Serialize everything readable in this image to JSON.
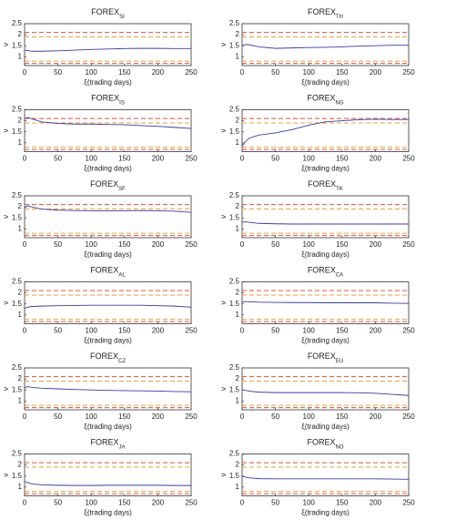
{
  "chart_data": [
    {
      "type": "line",
      "title": "FOREX",
      "title_sub": "SI",
      "xlabel": "ξ(trading days)",
      "ylabel": "ν",
      "xlim": [
        0,
        250
      ],
      "xticks": [
        0,
        50,
        100,
        150,
        200,
        250
      ],
      "ylim": [
        0.6,
        2.5
      ],
      "yticks": [
        1,
        1.5,
        2,
        2.5
      ],
      "hlines": [
        {
          "value": 2.1,
          "color": "#e0503a"
        },
        {
          "value": 1.9,
          "color": "#e8a23a"
        },
        {
          "value": 0.8,
          "color": "#e8a23a"
        },
        {
          "value": 0.7,
          "color": "#e0503a"
        }
      ],
      "x": [
        0,
        5,
        10,
        25,
        50,
        75,
        100,
        125,
        150,
        175,
        200,
        225,
        250
      ],
      "series": [
        {
          "color": "#3a3aa8",
          "values": [
            1.3,
            1.28,
            1.25,
            1.25,
            1.27,
            1.3,
            1.33,
            1.35,
            1.37,
            1.38,
            1.38,
            1.37,
            1.37
          ]
        }
      ]
    },
    {
      "type": "line",
      "title": "FOREX",
      "title_sub": "TH",
      "xlabel": "ξ(trading days)",
      "ylabel": "ν",
      "xlim": [
        0,
        250
      ],
      "xticks": [
        0,
        50,
        100,
        150,
        200,
        250
      ],
      "ylim": [
        0.6,
        2.5
      ],
      "yticks": [
        1,
        1.5,
        2,
        2.5
      ],
      "hlines": [
        {
          "value": 2.1,
          "color": "#e0503a"
        },
        {
          "value": 1.9,
          "color": "#e8a23a"
        },
        {
          "value": 0.8,
          "color": "#e8a23a"
        },
        {
          "value": 0.7,
          "color": "#e0503a"
        }
      ],
      "x": [
        0,
        5,
        10,
        25,
        50,
        75,
        100,
        125,
        150,
        175,
        200,
        225,
        250
      ],
      "series": [
        {
          "color": "#3a3aa8",
          "values": [
            1.5,
            1.55,
            1.55,
            1.45,
            1.38,
            1.4,
            1.42,
            1.43,
            1.45,
            1.48,
            1.5,
            1.52,
            1.52
          ]
        }
      ]
    },
    {
      "type": "line",
      "title": "FOREX",
      "title_sub": "IS",
      "xlabel": "ξ(trading days)",
      "ylabel": "ν",
      "xlim": [
        0,
        250
      ],
      "xticks": [
        0,
        50,
        100,
        150,
        200,
        250
      ],
      "ylim": [
        0.6,
        2.5
      ],
      "yticks": [
        1,
        1.5,
        2,
        2.5
      ],
      "hlines": [
        {
          "value": 2.1,
          "color": "#e0503a"
        },
        {
          "value": 1.9,
          "color": "#e8a23a"
        },
        {
          "value": 0.8,
          "color": "#e8a23a"
        },
        {
          "value": 0.7,
          "color": "#e0503a"
        }
      ],
      "x": [
        0,
        5,
        10,
        25,
        50,
        75,
        100,
        125,
        150,
        175,
        200,
        225,
        250
      ],
      "series": [
        {
          "color": "#3a3aa8",
          "values": [
            2.1,
            2.15,
            2.1,
            1.95,
            1.88,
            1.85,
            1.85,
            1.83,
            1.82,
            1.78,
            1.75,
            1.7,
            1.65
          ]
        }
      ]
    },
    {
      "type": "line",
      "title": "FOREX",
      "title_sub": "NG",
      "xlabel": "ξ(trading days)",
      "ylabel": "ν",
      "xlim": [
        0,
        250
      ],
      "xticks": [
        0,
        50,
        100,
        150,
        200,
        250
      ],
      "ylim": [
        0.6,
        2.5
      ],
      "yticks": [
        1,
        1.5,
        2,
        2.5
      ],
      "hlines": [
        {
          "value": 2.1,
          "color": "#e0503a"
        },
        {
          "value": 1.9,
          "color": "#e8a23a"
        },
        {
          "value": 0.8,
          "color": "#e8a23a"
        },
        {
          "value": 0.7,
          "color": "#e0503a"
        }
      ],
      "x": [
        0,
        5,
        10,
        25,
        50,
        75,
        100,
        125,
        150,
        175,
        200,
        225,
        250
      ],
      "series": [
        {
          "color": "#3a3aa8",
          "values": [
            0.85,
            1.05,
            1.2,
            1.35,
            1.45,
            1.6,
            1.8,
            1.95,
            2.0,
            2.05,
            2.07,
            2.06,
            2.06
          ]
        }
      ]
    },
    {
      "type": "line",
      "title": "FOREX",
      "title_sub": "SF",
      "xlabel": "ξ(trading days)",
      "ylabel": "ν",
      "xlim": [
        0,
        250
      ],
      "xticks": [
        0,
        50,
        100,
        150,
        200,
        250
      ],
      "ylim": [
        0.6,
        2.5
      ],
      "yticks": [
        1,
        1.5,
        2,
        2.5
      ],
      "hlines": [
        {
          "value": 2.1,
          "color": "#e0503a"
        },
        {
          "value": 1.9,
          "color": "#e8a23a"
        },
        {
          "value": 0.8,
          "color": "#e8a23a"
        },
        {
          "value": 0.7,
          "color": "#e0503a"
        }
      ],
      "x": [
        0,
        5,
        10,
        25,
        50,
        75,
        100,
        125,
        150,
        175,
        200,
        225,
        250
      ],
      "series": [
        {
          "color": "#3a3aa8",
          "values": [
            1.95,
            2.05,
            2.0,
            1.9,
            1.85,
            1.83,
            1.82,
            1.82,
            1.82,
            1.83,
            1.82,
            1.8,
            1.75
          ]
        }
      ]
    },
    {
      "type": "line",
      "title": "FOREX",
      "title_sub": "TK",
      "xlabel": "ξ(trading days)",
      "ylabel": "ν",
      "xlim": [
        0,
        250
      ],
      "xticks": [
        0,
        50,
        100,
        150,
        200,
        250
      ],
      "ylim": [
        0.6,
        2.5
      ],
      "yticks": [
        1,
        1.5,
        2,
        2.5
      ],
      "hlines": [
        {
          "value": 2.1,
          "color": "#e0503a"
        },
        {
          "value": 1.9,
          "color": "#e8a23a"
        },
        {
          "value": 0.8,
          "color": "#e8a23a"
        },
        {
          "value": 0.7,
          "color": "#e0503a"
        }
      ],
      "x": [
        0,
        5,
        10,
        25,
        50,
        75,
        100,
        125,
        150,
        175,
        200,
        225,
        250
      ],
      "series": [
        {
          "color": "#3a3aa8",
          "values": [
            1.3,
            1.32,
            1.3,
            1.25,
            1.23,
            1.22,
            1.22,
            1.22,
            1.22,
            1.22,
            1.22,
            1.22,
            1.22
          ]
        }
      ]
    },
    {
      "type": "line",
      "title": "FOREX",
      "title_sub": "AL",
      "xlabel": "ξ(trading days)",
      "ylabel": "ν",
      "xlim": [
        0,
        250
      ],
      "xticks": [
        0,
        50,
        100,
        150,
        200,
        250
      ],
      "ylim": [
        0.6,
        2.5
      ],
      "yticks": [
        1,
        1.5,
        2,
        2.5
      ],
      "hlines": [
        {
          "value": 2.1,
          "color": "#e0503a"
        },
        {
          "value": 1.9,
          "color": "#e8a23a"
        },
        {
          "value": 0.8,
          "color": "#e8a23a"
        },
        {
          "value": 0.7,
          "color": "#e0503a"
        }
      ],
      "x": [
        0,
        5,
        10,
        25,
        50,
        75,
        100,
        125,
        150,
        175,
        200,
        225,
        250
      ],
      "series": [
        {
          "color": "#3a3aa8",
          "values": [
            1.3,
            1.35,
            1.38,
            1.4,
            1.42,
            1.43,
            1.44,
            1.44,
            1.44,
            1.44,
            1.42,
            1.4,
            1.35
          ]
        }
      ]
    },
    {
      "type": "line",
      "title": "FOREX",
      "title_sub": "CA",
      "xlabel": "ξ(trading days)",
      "ylabel": "ν",
      "xlim": [
        0,
        250
      ],
      "xticks": [
        0,
        50,
        100,
        150,
        200,
        250
      ],
      "ylim": [
        0.6,
        2.5
      ],
      "yticks": [
        1,
        1.5,
        2,
        2.5
      ],
      "hlines": [
        {
          "value": 2.1,
          "color": "#e0503a"
        },
        {
          "value": 1.9,
          "color": "#e8a23a"
        },
        {
          "value": 0.8,
          "color": "#e8a23a"
        },
        {
          "value": 0.7,
          "color": "#e0503a"
        }
      ],
      "x": [
        0,
        5,
        10,
        25,
        50,
        75,
        100,
        125,
        150,
        175,
        200,
        225,
        250
      ],
      "series": [
        {
          "color": "#3a3aa8",
          "values": [
            1.6,
            1.6,
            1.6,
            1.58,
            1.57,
            1.56,
            1.56,
            1.55,
            1.55,
            1.55,
            1.55,
            1.53,
            1.52
          ]
        }
      ]
    },
    {
      "type": "line",
      "title": "FOREX",
      "title_sub": "CZ",
      "xlabel": "ξ(trading days)",
      "ylabel": "ν",
      "xlim": [
        0,
        250
      ],
      "xticks": [
        0,
        50,
        100,
        150,
        200,
        250
      ],
      "ylim": [
        0.6,
        2.5
      ],
      "yticks": [
        1,
        1.5,
        2,
        2.5
      ],
      "hlines": [
        {
          "value": 2.1,
          "color": "#e0503a"
        },
        {
          "value": 1.9,
          "color": "#e8a23a"
        },
        {
          "value": 0.8,
          "color": "#e8a23a"
        },
        {
          "value": 0.7,
          "color": "#e0503a"
        }
      ],
      "x": [
        0,
        5,
        10,
        25,
        50,
        75,
        100,
        125,
        150,
        175,
        200,
        225,
        250
      ],
      "series": [
        {
          "color": "#3a3aa8",
          "values": [
            1.6,
            1.65,
            1.62,
            1.58,
            1.55,
            1.52,
            1.5,
            1.48,
            1.47,
            1.46,
            1.45,
            1.43,
            1.42
          ]
        }
      ]
    },
    {
      "type": "line",
      "title": "FOREX",
      "title_sub": "EU",
      "xlabel": "ξ(trading days)",
      "ylabel": "ν",
      "xlim": [
        0,
        250
      ],
      "xticks": [
        0,
        50,
        100,
        150,
        200,
        250
      ],
      "ylim": [
        0.6,
        2.5
      ],
      "yticks": [
        1,
        1.5,
        2,
        2.5
      ],
      "hlines": [
        {
          "value": 2.1,
          "color": "#e0503a"
        },
        {
          "value": 1.9,
          "color": "#e8a23a"
        },
        {
          "value": 0.8,
          "color": "#e8a23a"
        },
        {
          "value": 0.7,
          "color": "#e0503a"
        }
      ],
      "x": [
        0,
        5,
        10,
        25,
        50,
        75,
        100,
        125,
        150,
        175,
        200,
        225,
        250
      ],
      "series": [
        {
          "color": "#3a3aa8",
          "values": [
            1.5,
            1.48,
            1.45,
            1.4,
            1.38,
            1.38,
            1.38,
            1.38,
            1.38,
            1.37,
            1.35,
            1.3,
            1.25
          ]
        }
      ]
    },
    {
      "type": "line",
      "title": "FOREX",
      "title_sub": "JA",
      "xlabel": "ξ(trading days)",
      "ylabel": "ν",
      "xlim": [
        0,
        250
      ],
      "xticks": [
        0,
        50,
        100,
        150,
        200,
        250
      ],
      "ylim": [
        0.6,
        2.5
      ],
      "yticks": [
        1,
        1.5,
        2,
        2.5
      ],
      "hlines": [
        {
          "value": 2.1,
          "color": "#e0503a"
        },
        {
          "value": 1.9,
          "color": "#e8a23a"
        },
        {
          "value": 0.8,
          "color": "#e8a23a"
        },
        {
          "value": 0.7,
          "color": "#e0503a"
        }
      ],
      "x": [
        0,
        5,
        10,
        25,
        50,
        75,
        100,
        125,
        150,
        175,
        200,
        225,
        250
      ],
      "series": [
        {
          "color": "#3a3aa8",
          "values": [
            1.25,
            1.2,
            1.15,
            1.1,
            1.08,
            1.07,
            1.07,
            1.08,
            1.08,
            1.08,
            1.08,
            1.07,
            1.07
          ]
        }
      ]
    },
    {
      "type": "line",
      "title": "FOREX",
      "title_sub": "NO",
      "xlabel": "ξ(trading days)",
      "ylabel": "ν",
      "xlim": [
        0,
        250
      ],
      "xticks": [
        0,
        50,
        100,
        150,
        200,
        250
      ],
      "ylim": [
        0.6,
        2.5
      ],
      "yticks": [
        1,
        1.5,
        2,
        2.5
      ],
      "hlines": [
        {
          "value": 2.1,
          "color": "#e0503a"
        },
        {
          "value": 1.9,
          "color": "#e8a23a"
        },
        {
          "value": 0.8,
          "color": "#e8a23a"
        },
        {
          "value": 0.7,
          "color": "#e0503a"
        }
      ],
      "x": [
        0,
        5,
        10,
        25,
        50,
        75,
        100,
        125,
        150,
        175,
        200,
        225,
        250
      ],
      "series": [
        {
          "color": "#3a3aa8",
          "values": [
            1.5,
            1.45,
            1.42,
            1.38,
            1.37,
            1.37,
            1.37,
            1.37,
            1.37,
            1.37,
            1.37,
            1.36,
            1.35
          ]
        }
      ]
    }
  ]
}
